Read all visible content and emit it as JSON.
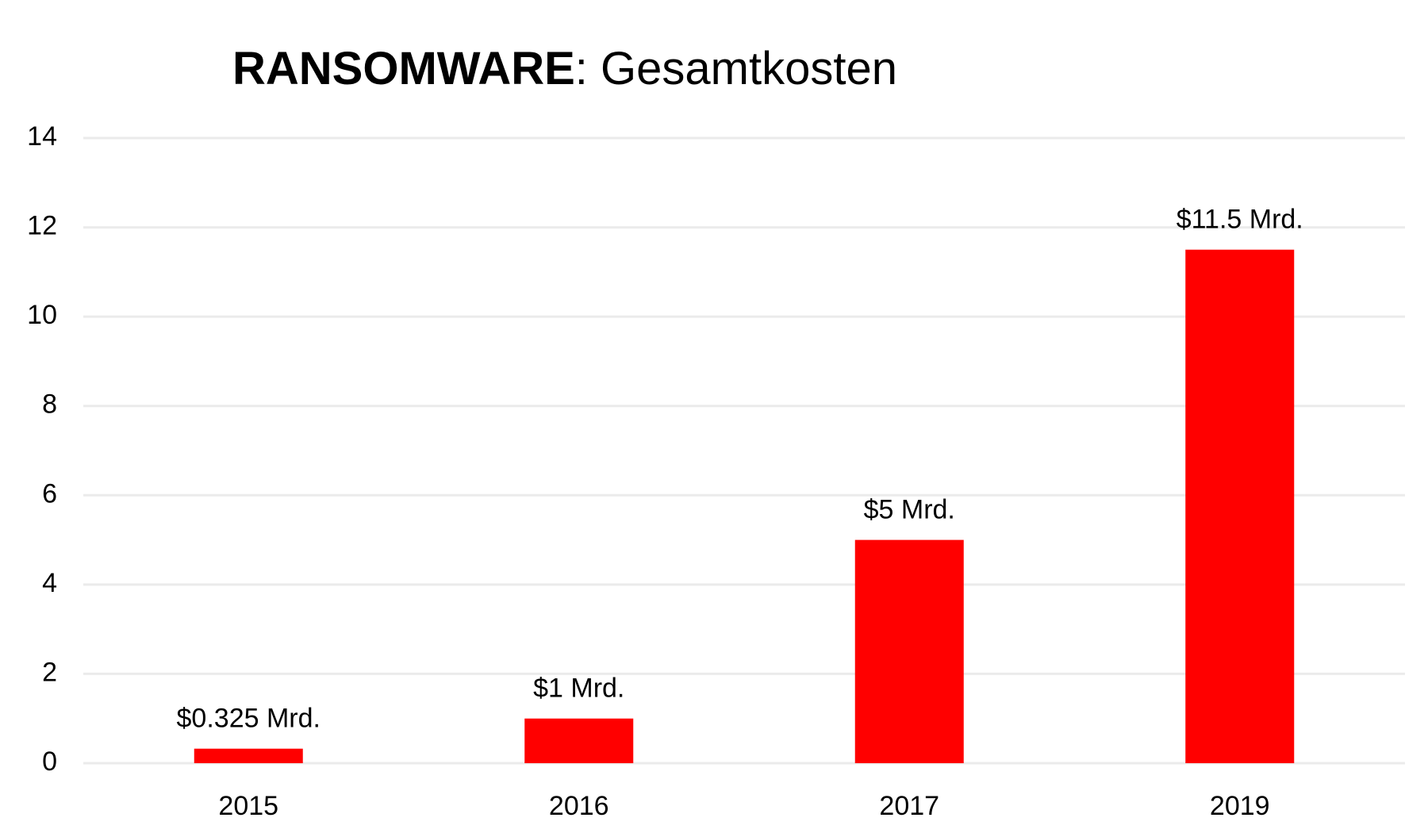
{
  "chart_data": {
    "type": "bar",
    "title": [
      "RANSOMWARE",
      ": Gesamtkosten"
    ],
    "categories": [
      "2015",
      "2016",
      "2017",
      "2019"
    ],
    "values": [
      0.325,
      1,
      5,
      11.5
    ],
    "value_labels": [
      "$0.325 Mrd.",
      "$1 Mrd.",
      "$5 Mrd.",
      "$11.5 Mrd."
    ],
    "color": "#ff0000",
    "ylim": [
      0,
      14
    ],
    "yticks": [
      0,
      2,
      4,
      6,
      8,
      10,
      12,
      14
    ],
    "grid": true
  }
}
